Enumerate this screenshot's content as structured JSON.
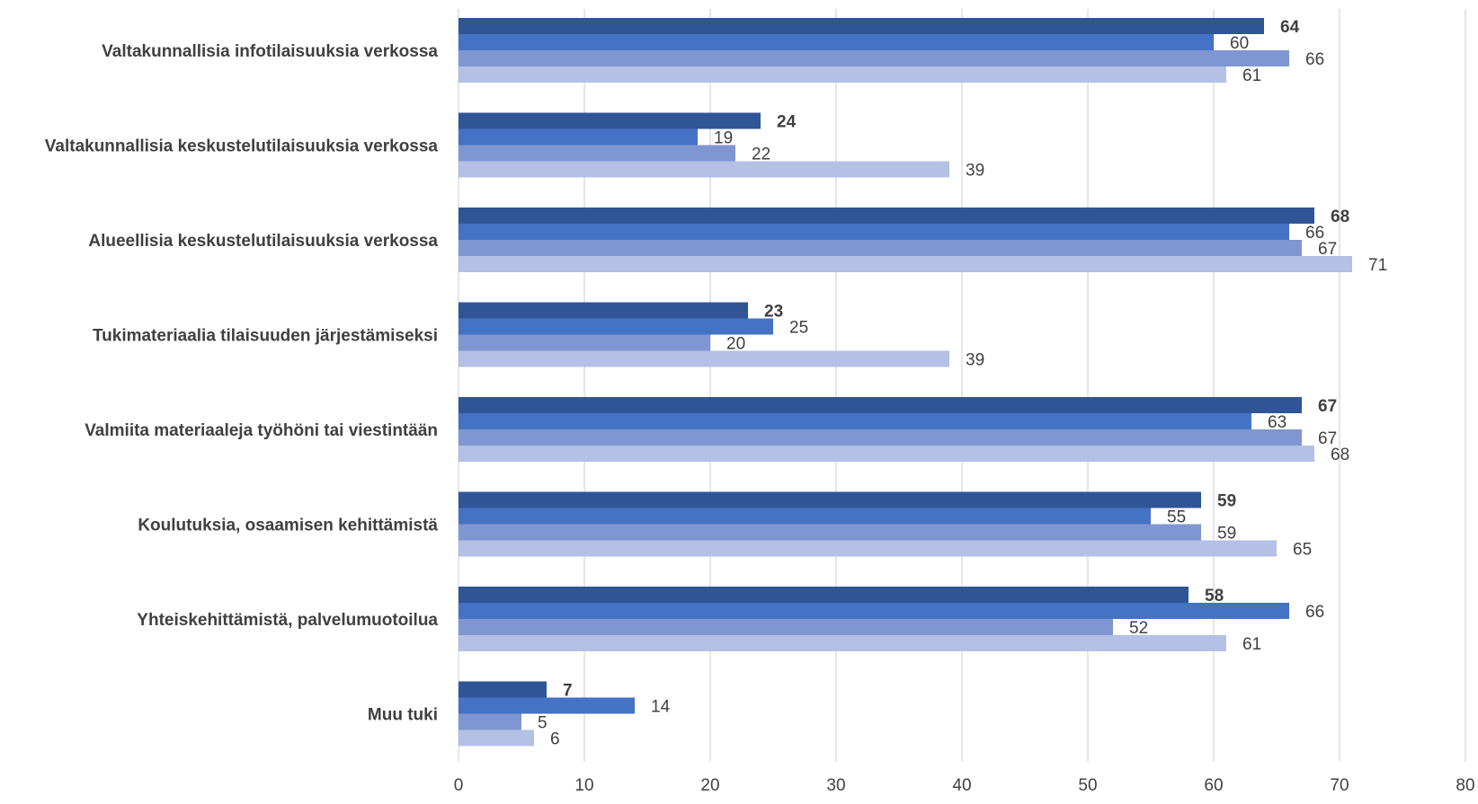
{
  "chart_data": {
    "type": "bar",
    "orientation": "horizontal",
    "categories": [
      "Valtakunnallisia infotilaisuuksia verkossa",
      "Valtakunnallisia keskustelutilaisuuksia verkossa",
      "Alueellisia keskustelutilaisuuksia verkossa",
      "Tukimateriaalia tilaisuuden järjestämiseksi",
      "Valmiita materiaaleja työhöni tai viestintään",
      "Koulutuksia, osaamisen kehittämistä",
      "Yhteiskehittämistä, palvelumuotoilua",
      "Muu tuki"
    ],
    "series": [
      {
        "color": "#2f5597",
        "label_bold": true,
        "values": [
          64,
          24,
          68,
          23,
          67,
          59,
          58,
          7
        ]
      },
      {
        "color": "#4472c4",
        "label_bold": false,
        "values": [
          60,
          19,
          66,
          25,
          63,
          55,
          66,
          14
        ]
      },
      {
        "color": "#7f96d2",
        "label_bold": false,
        "values": [
          66,
          22,
          67,
          20,
          67,
          59,
          52,
          5
        ]
      },
      {
        "color": "#b4c0e4",
        "label_bold": false,
        "values": [
          61,
          39,
          71,
          39,
          68,
          65,
          61,
          6
        ]
      }
    ],
    "x_ticks": [
      "0",
      "10",
      "20",
      "30",
      "40",
      "50",
      "60",
      "70",
      "80"
    ],
    "xlim": [
      0,
      80
    ],
    "title": "",
    "xlabel": "",
    "ylabel": "",
    "grid": "vertical",
    "legend": "none",
    "data_labels": true
  }
}
